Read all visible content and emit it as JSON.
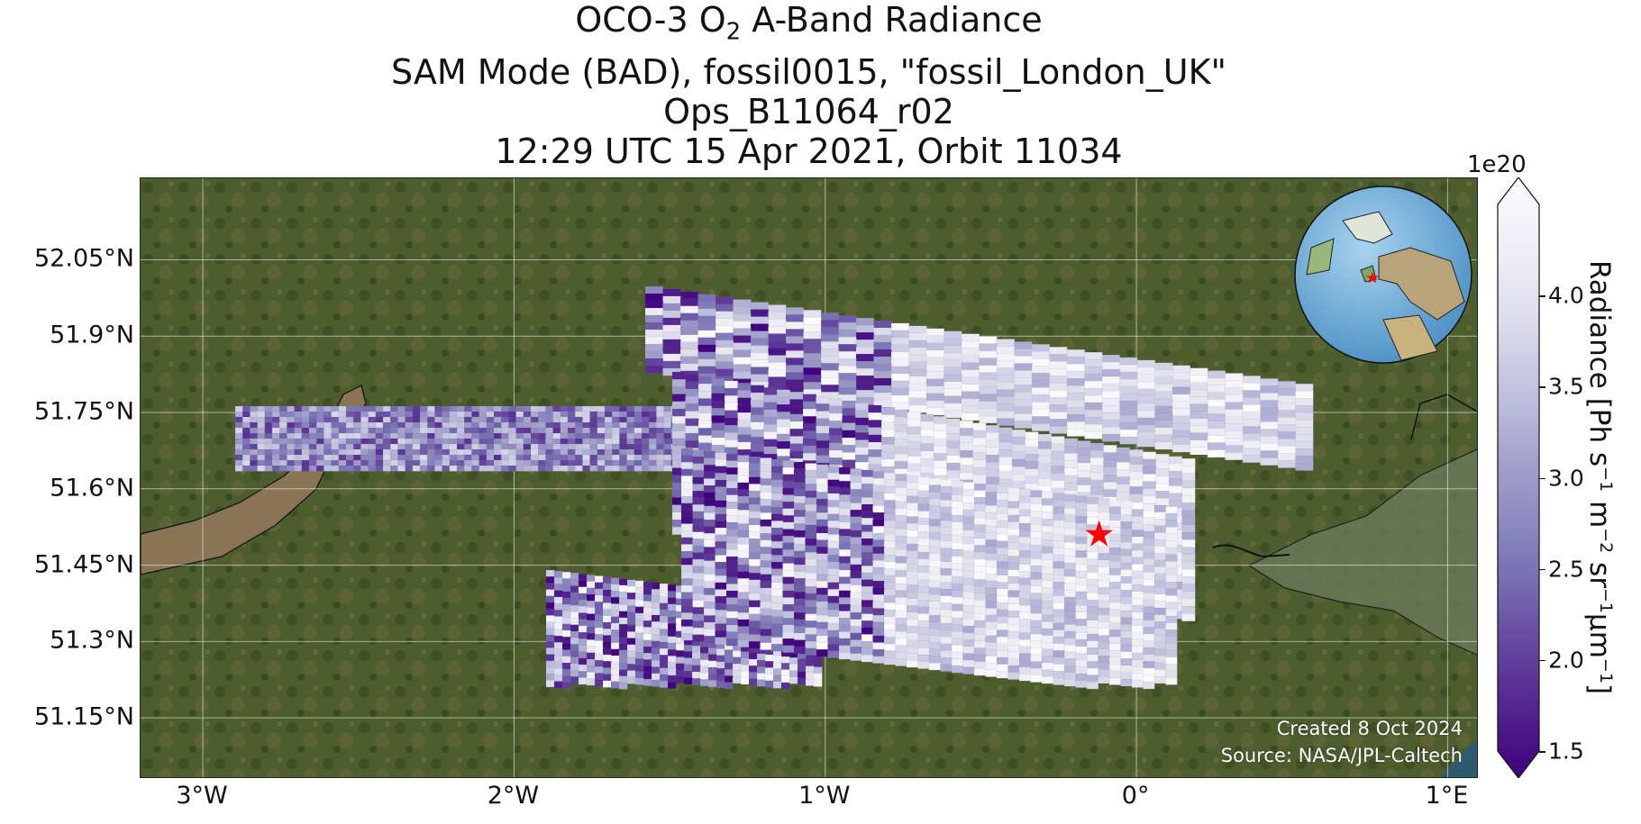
{
  "title": {
    "line1_pre": "OCO-3 O",
    "line1_sub": "2",
    "line1_post": " A-Band Radiance",
    "line2": "SAM Mode (BAD), fossil0015, \"fossil_London_UK\"",
    "line3": "Ops_B11064_r02",
    "line4": "12:29 UTC 15 Apr 2021, Orbit 11034"
  },
  "map": {
    "extent": {
      "lon": [
        -3.2,
        1.1
      ],
      "lat": [
        51.03,
        52.21
      ]
    },
    "lat_ticks": [
      {
        "value": 52.05,
        "label": "52.05°N"
      },
      {
        "value": 51.9,
        "label": "51.9°N"
      },
      {
        "value": 51.75,
        "label": "51.75°N"
      },
      {
        "value": 51.6,
        "label": "51.6°N"
      },
      {
        "value": 51.45,
        "label": "51.45°N"
      },
      {
        "value": 51.3,
        "label": "51.3°N"
      },
      {
        "value": 51.15,
        "label": "51.15°N"
      }
    ],
    "lon_ticks": [
      {
        "value": -3,
        "label": "3°W"
      },
      {
        "value": -2,
        "label": "2°W"
      },
      {
        "value": -1,
        "label": "1°W"
      },
      {
        "value": 0,
        "label": "0°"
      },
      {
        "value": 1,
        "label": "1°E"
      }
    ],
    "target": {
      "name": "fossil_London_UK",
      "lon": -0.12,
      "lat": 51.51,
      "marker": "red-star",
      "color": "#ff0000"
    },
    "credit_line1": "Created 8 Oct 2024",
    "credit_line2": "Source: NASA/JPL-Caltech"
  },
  "colorbar": {
    "label_pre": "Radiance [Ph s",
    "label_mid1": " m",
    "label_mid2": " sr",
    "label_post": "μm",
    "label_end": "]",
    "sup_neg1": "−1",
    "sup_neg2": "−2",
    "exponent": "1e20",
    "min": 1.5,
    "max": 4.5,
    "ticks": [
      {
        "value": 1.5,
        "label": "1.5"
      },
      {
        "value": 2.0,
        "label": "2.0"
      },
      {
        "value": 2.5,
        "label": "2.5"
      },
      {
        "value": 3.0,
        "label": "3.0"
      },
      {
        "value": 3.5,
        "label": "3.5"
      },
      {
        "value": 4.0,
        "label": "4.0"
      }
    ],
    "colormap": "Purples_r",
    "colors": [
      "#3f007d",
      "#54278f",
      "#6a51a3",
      "#807dba",
      "#9e9ac8",
      "#bcbddc",
      "#dadaeb",
      "#efedf5",
      "#fcfbfd"
    ]
  },
  "basemap": {
    "land": "#4a5a2c",
    "water": "#8a7456",
    "sea": "#5b6b55"
  },
  "inset_globe": {
    "marker": "red-star",
    "ocean": "#6aa9d6",
    "land": "#9ab87a"
  }
}
